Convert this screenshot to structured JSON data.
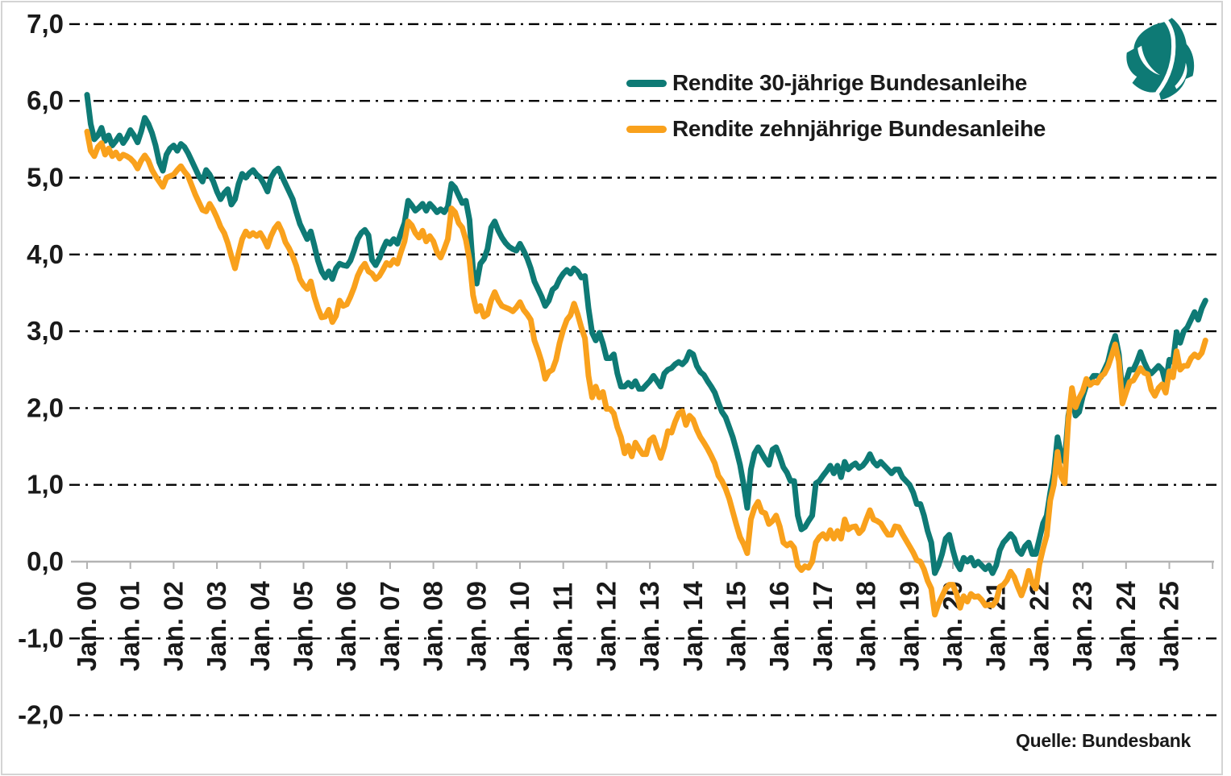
{
  "chart_data": {
    "type": "line",
    "title": "",
    "source": "Quelle: Bundesbank",
    "x_start": "Jan. 00",
    "frequency": "monthly",
    "grid": "horizontal-dash-dot",
    "legend_position": "top-center-inside",
    "ylim": [
      -2.4,
      7.2
    ],
    "y_ticks": [
      {
        "value": 7,
        "label": "7,0"
      },
      {
        "value": 6,
        "label": "6,0"
      },
      {
        "value": 5,
        "label": "5,0"
      },
      {
        "value": 4,
        "label": "4,0"
      },
      {
        "value": 3,
        "label": "3,0"
      },
      {
        "value": 2,
        "label": "2,0"
      },
      {
        "value": 1,
        "label": "1,0"
      },
      {
        "value": 0,
        "label": "0,0"
      },
      {
        "value": -1,
        "label": "-1,0"
      },
      {
        "value": -2,
        "label": "-2,0"
      }
    ],
    "x_tick_labels": [
      "Jan. 00",
      "Jan. 01",
      "Jan. 02",
      "Jan. 03",
      "Jan. 04",
      "Jan. 05",
      "Jan. 06",
      "Jan. 07",
      "Jan. 08",
      "Jan. 09",
      "Jan. 10",
      "Jan. 11",
      "Jan. 12",
      "Jan. 13",
      "Jan. 14",
      "Jan. 15",
      "Jan. 16",
      "Jan. 17",
      "Jan. 18",
      "Jan. 19",
      "Jan. 20",
      "Jan. 21",
      "Jan. 22",
      "Jan. 23",
      "Jan. 24",
      "Jan. 25"
    ],
    "series": [
      {
        "name": "Rendite 30-jährige Bundesanleihe",
        "color": "#0e7a75",
        "values": [
          6.08,
          5.7,
          5.5,
          5.55,
          5.65,
          5.48,
          5.55,
          5.42,
          5.48,
          5.55,
          5.45,
          5.52,
          5.62,
          5.55,
          5.46,
          5.6,
          5.78,
          5.7,
          5.58,
          5.42,
          5.2,
          5.09,
          5.3,
          5.38,
          5.42,
          5.35,
          5.44,
          5.4,
          5.32,
          5.22,
          5.12,
          5.02,
          4.95,
          5.1,
          5.04,
          4.95,
          4.82,
          4.72,
          4.8,
          4.85,
          4.65,
          4.72,
          4.92,
          5.05,
          5.0,
          5.06,
          5.1,
          5.04,
          5.0,
          4.92,
          4.82,
          5.0,
          5.08,
          5.12,
          5.02,
          4.92,
          4.82,
          4.72,
          4.55,
          4.4,
          4.3,
          4.2,
          4.3,
          4.12,
          3.92,
          3.78,
          3.7,
          3.78,
          3.68,
          3.82,
          3.88,
          3.86,
          3.85,
          3.92,
          4.05,
          4.2,
          4.28,
          4.32,
          4.25,
          3.93,
          3.86,
          3.95,
          4.07,
          4.17,
          4.14,
          4.2,
          4.14,
          4.28,
          4.41,
          4.7,
          4.64,
          4.57,
          4.61,
          4.66,
          4.57,
          4.66,
          4.61,
          4.55,
          4.59,
          4.55,
          4.62,
          4.92,
          4.87,
          4.77,
          4.67,
          4.7,
          4.45,
          3.8,
          3.62,
          3.88,
          3.94,
          4.07,
          4.35,
          4.43,
          4.31,
          4.22,
          4.15,
          4.1,
          4.07,
          4.05,
          4.14,
          4.05,
          3.95,
          3.82,
          3.65,
          3.55,
          3.45,
          3.33,
          3.4,
          3.54,
          3.58,
          3.68,
          3.75,
          3.8,
          3.75,
          3.82,
          3.78,
          3.7,
          3.72,
          3.3,
          2.98,
          2.88,
          2.98,
          2.84,
          2.65,
          2.65,
          2.7,
          2.45,
          2.28,
          2.28,
          2.33,
          2.28,
          2.35,
          2.25,
          2.25,
          2.3,
          2.35,
          2.42,
          2.35,
          2.28,
          2.45,
          2.5,
          2.52,
          2.57,
          2.6,
          2.57,
          2.62,
          2.73,
          2.7,
          2.55,
          2.47,
          2.43,
          2.35,
          2.28,
          2.2,
          2.07,
          1.95,
          1.88,
          1.75,
          1.62,
          1.45,
          1.26,
          1.0,
          0.7,
          1.2,
          1.41,
          1.49,
          1.41,
          1.33,
          1.26,
          1.46,
          1.49,
          1.37,
          1.23,
          1.16,
          1.05,
          1.05,
          0.6,
          0.42,
          0.45,
          0.53,
          0.6,
          1.02,
          1.05,
          1.12,
          1.18,
          1.25,
          1.15,
          1.25,
          1.1,
          1.3,
          1.2,
          1.25,
          1.28,
          1.22,
          1.25,
          1.31,
          1.4,
          1.3,
          1.25,
          1.3,
          1.25,
          1.2,
          1.15,
          1.2,
          1.2,
          1.1,
          1.05,
          1.0,
          0.9,
          0.75,
          0.75,
          0.6,
          0.4,
          0.25,
          -0.15,
          -0.05,
          0.1,
          0.3,
          0.35,
          0.15,
          -0.02,
          -0.1,
          0.05,
          0.0,
          0.05,
          -0.05,
          0.0,
          -0.05,
          -0.1,
          -0.05,
          -0.15,
          -0.05,
          0.15,
          0.25,
          0.3,
          0.36,
          0.3,
          0.15,
          0.1,
          0.2,
          0.25,
          0.1,
          0.1,
          0.3,
          0.5,
          0.6,
          0.9,
          1.15,
          1.62,
          1.4,
          1.3,
          1.9,
          2.15,
          1.9,
          1.95,
          2.15,
          2.3,
          2.35,
          2.42,
          2.42,
          2.4,
          2.5,
          2.6,
          2.8,
          2.94,
          2.7,
          2.2,
          2.35,
          2.5,
          2.5,
          2.6,
          2.73,
          2.6,
          2.5,
          2.45,
          2.5,
          2.55,
          2.5,
          2.32,
          2.63,
          2.6,
          2.99,
          2.85,
          3.0,
          3.05,
          3.15,
          3.25,
          3.15,
          3.3,
          3.4
        ]
      },
      {
        "name": "Rendite zehnjährige Bundesanleihe",
        "color": "#f9a11c",
        "values": [
          5.6,
          5.35,
          5.28,
          5.4,
          5.45,
          5.3,
          5.38,
          5.28,
          5.33,
          5.25,
          5.3,
          5.28,
          5.25,
          5.2,
          5.12,
          5.22,
          5.29,
          5.22,
          5.1,
          5.02,
          4.95,
          4.88,
          5.0,
          5.02,
          5.04,
          5.1,
          5.15,
          5.08,
          5.02,
          4.9,
          4.78,
          4.68,
          4.58,
          4.56,
          4.66,
          4.58,
          4.48,
          4.36,
          4.28,
          4.15,
          3.98,
          3.82,
          4.02,
          4.2,
          4.3,
          4.24,
          4.28,
          4.24,
          4.28,
          4.2,
          4.1,
          4.24,
          4.34,
          4.4,
          4.3,
          4.16,
          4.08,
          3.98,
          3.85,
          3.68,
          3.6,
          3.55,
          3.65,
          3.45,
          3.3,
          3.18,
          3.19,
          3.28,
          3.12,
          3.2,
          3.4,
          3.33,
          3.35,
          3.45,
          3.57,
          3.72,
          3.82,
          3.88,
          3.78,
          3.75,
          3.68,
          3.72,
          3.8,
          3.89,
          3.86,
          3.93,
          3.88,
          4.03,
          4.17,
          4.43,
          4.38,
          4.28,
          4.22,
          4.31,
          4.17,
          4.24,
          4.17,
          4.03,
          3.96,
          4.07,
          4.2,
          4.6,
          4.55,
          4.41,
          4.35,
          4.19,
          3.93,
          3.47,
          3.26,
          3.33,
          3.19,
          3.22,
          3.4,
          3.51,
          3.4,
          3.33,
          3.31,
          3.29,
          3.26,
          3.31,
          3.38,
          3.28,
          3.22,
          3.15,
          2.88,
          2.75,
          2.6,
          2.38,
          2.47,
          2.5,
          2.63,
          2.85,
          3.02,
          3.15,
          3.21,
          3.36,
          3.22,
          3.05,
          2.91,
          2.42,
          2.14,
          2.28,
          2.14,
          2.21,
          1.99,
          1.99,
          1.93,
          1.75,
          1.62,
          1.41,
          1.51,
          1.37,
          1.55,
          1.47,
          1.4,
          1.4,
          1.58,
          1.62,
          1.48,
          1.35,
          1.5,
          1.7,
          1.68,
          1.82,
          1.93,
          1.96,
          1.78,
          1.9,
          1.85,
          1.72,
          1.62,
          1.55,
          1.47,
          1.38,
          1.28,
          1.12,
          1.05,
          0.95,
          0.82,
          0.65,
          0.48,
          0.32,
          0.23,
          0.11,
          0.55,
          0.7,
          0.78,
          0.65,
          0.63,
          0.49,
          0.53,
          0.6,
          0.46,
          0.25,
          0.21,
          0.24,
          0.18,
          -0.05,
          -0.11,
          -0.06,
          -0.08,
          0.0,
          0.25,
          0.32,
          0.36,
          0.3,
          0.41,
          0.3,
          0.4,
          0.3,
          0.55,
          0.42,
          0.45,
          0.46,
          0.37,
          0.42,
          0.55,
          0.67,
          0.55,
          0.53,
          0.5,
          0.42,
          0.35,
          0.35,
          0.46,
          0.45,
          0.36,
          0.28,
          0.2,
          0.12,
          0.02,
          0.0,
          -0.1,
          -0.25,
          -0.35,
          -0.69,
          -0.55,
          -0.45,
          -0.35,
          -0.3,
          -0.3,
          -0.42,
          -0.6,
          -0.45,
          -0.52,
          -0.42,
          -0.46,
          -0.45,
          -0.5,
          -0.57,
          -0.56,
          -0.57,
          -0.51,
          -0.33,
          -0.3,
          -0.24,
          -0.13,
          -0.2,
          -0.33,
          -0.44,
          -0.31,
          -0.12,
          -0.28,
          -0.35,
          -0.03,
          0.17,
          0.34,
          0.8,
          1.0,
          1.43,
          1.11,
          1.02,
          1.84,
          2.26,
          2.01,
          2.13,
          2.22,
          2.38,
          2.3,
          2.34,
          2.33,
          2.41,
          2.45,
          2.54,
          2.68,
          2.83,
          2.61,
          2.06,
          2.2,
          2.34,
          2.36,
          2.44,
          2.52,
          2.46,
          2.44,
          2.24,
          2.16,
          2.26,
          2.31,
          2.2,
          2.48,
          2.4,
          2.74,
          2.5,
          2.55,
          2.55,
          2.65,
          2.7,
          2.66,
          2.72,
          2.88
        ]
      }
    ]
  },
  "branding": {
    "logo_color": "#0e7a75"
  }
}
